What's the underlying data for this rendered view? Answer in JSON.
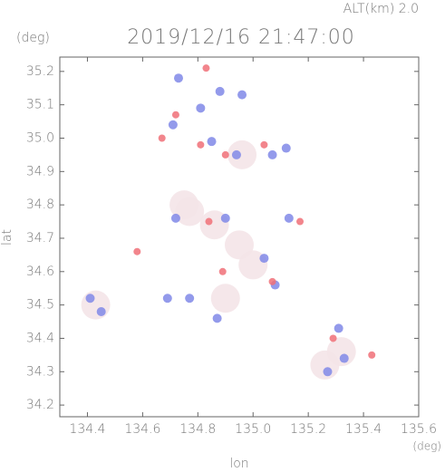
{
  "chart_data": {
    "type": "scatter",
    "title": "2019/12/16 21:47:00",
    "subtitle": "ALT(km) 2.0",
    "x_label": "lon",
    "x_unit": "(deg)",
    "y_label": "lat",
    "y_unit": "(deg)",
    "xlim": [
      134.3,
      135.6
    ],
    "ylim": [
      34.165,
      35.243
    ],
    "xticks": [
      134.4,
      134.6,
      134.8,
      {
        "value": 135,
        "label": "135.0"
      },
      135.2,
      135.4,
      135.6
    ],
    "yticks": [
      34.2,
      34.3,
      34.4,
      34.5,
      34.6,
      34.7,
      34.8,
      34.9,
      {
        "value": 35,
        "label": "35.0"
      },
      35.1,
      35.2
    ],
    "series": [
      {
        "color": "#f4e4e8",
        "x": [
          134.77,
          134.86,
          134.95,
          134.9,
          135.32,
          135.26,
          134.43,
          134.96,
          134.75,
          135.0
        ],
        "values": [
          34.78,
          34.74,
          34.68,
          34.52,
          34.36,
          34.32,
          34.5,
          34.95,
          34.8,
          34.62
        ]
      },
      {
        "color": "#8088e8",
        "x": [
          134.73,
          134.88,
          134.96,
          134.81,
          134.71,
          134.85,
          134.94,
          135.07,
          134.41,
          134.45,
          134.69,
          134.87,
          134.77,
          135.08,
          135.33,
          135.27,
          134.9,
          135.04,
          135.13,
          135.31,
          134.72,
          135.12
        ],
        "values": [
          35.18,
          35.14,
          35.13,
          35.09,
          35.04,
          34.99,
          34.95,
          34.95,
          34.52,
          34.48,
          34.52,
          34.46,
          34.52,
          34.56,
          34.34,
          34.3,
          34.76,
          34.64,
          34.76,
          34.43,
          34.76,
          34.97
        ]
      },
      {
        "color": "#f07078",
        "x": [
          134.72,
          134.67,
          134.81,
          134.9,
          134.58,
          134.84,
          135.07,
          135.29,
          135.43,
          134.89,
          135.17,
          134.83,
          135.04
        ],
        "values": [
          35.07,
          35.0,
          34.98,
          34.95,
          34.66,
          34.75,
          34.57,
          34.4,
          34.35,
          34.6,
          34.75,
          35.21,
          34.98
        ]
      }
    ]
  }
}
